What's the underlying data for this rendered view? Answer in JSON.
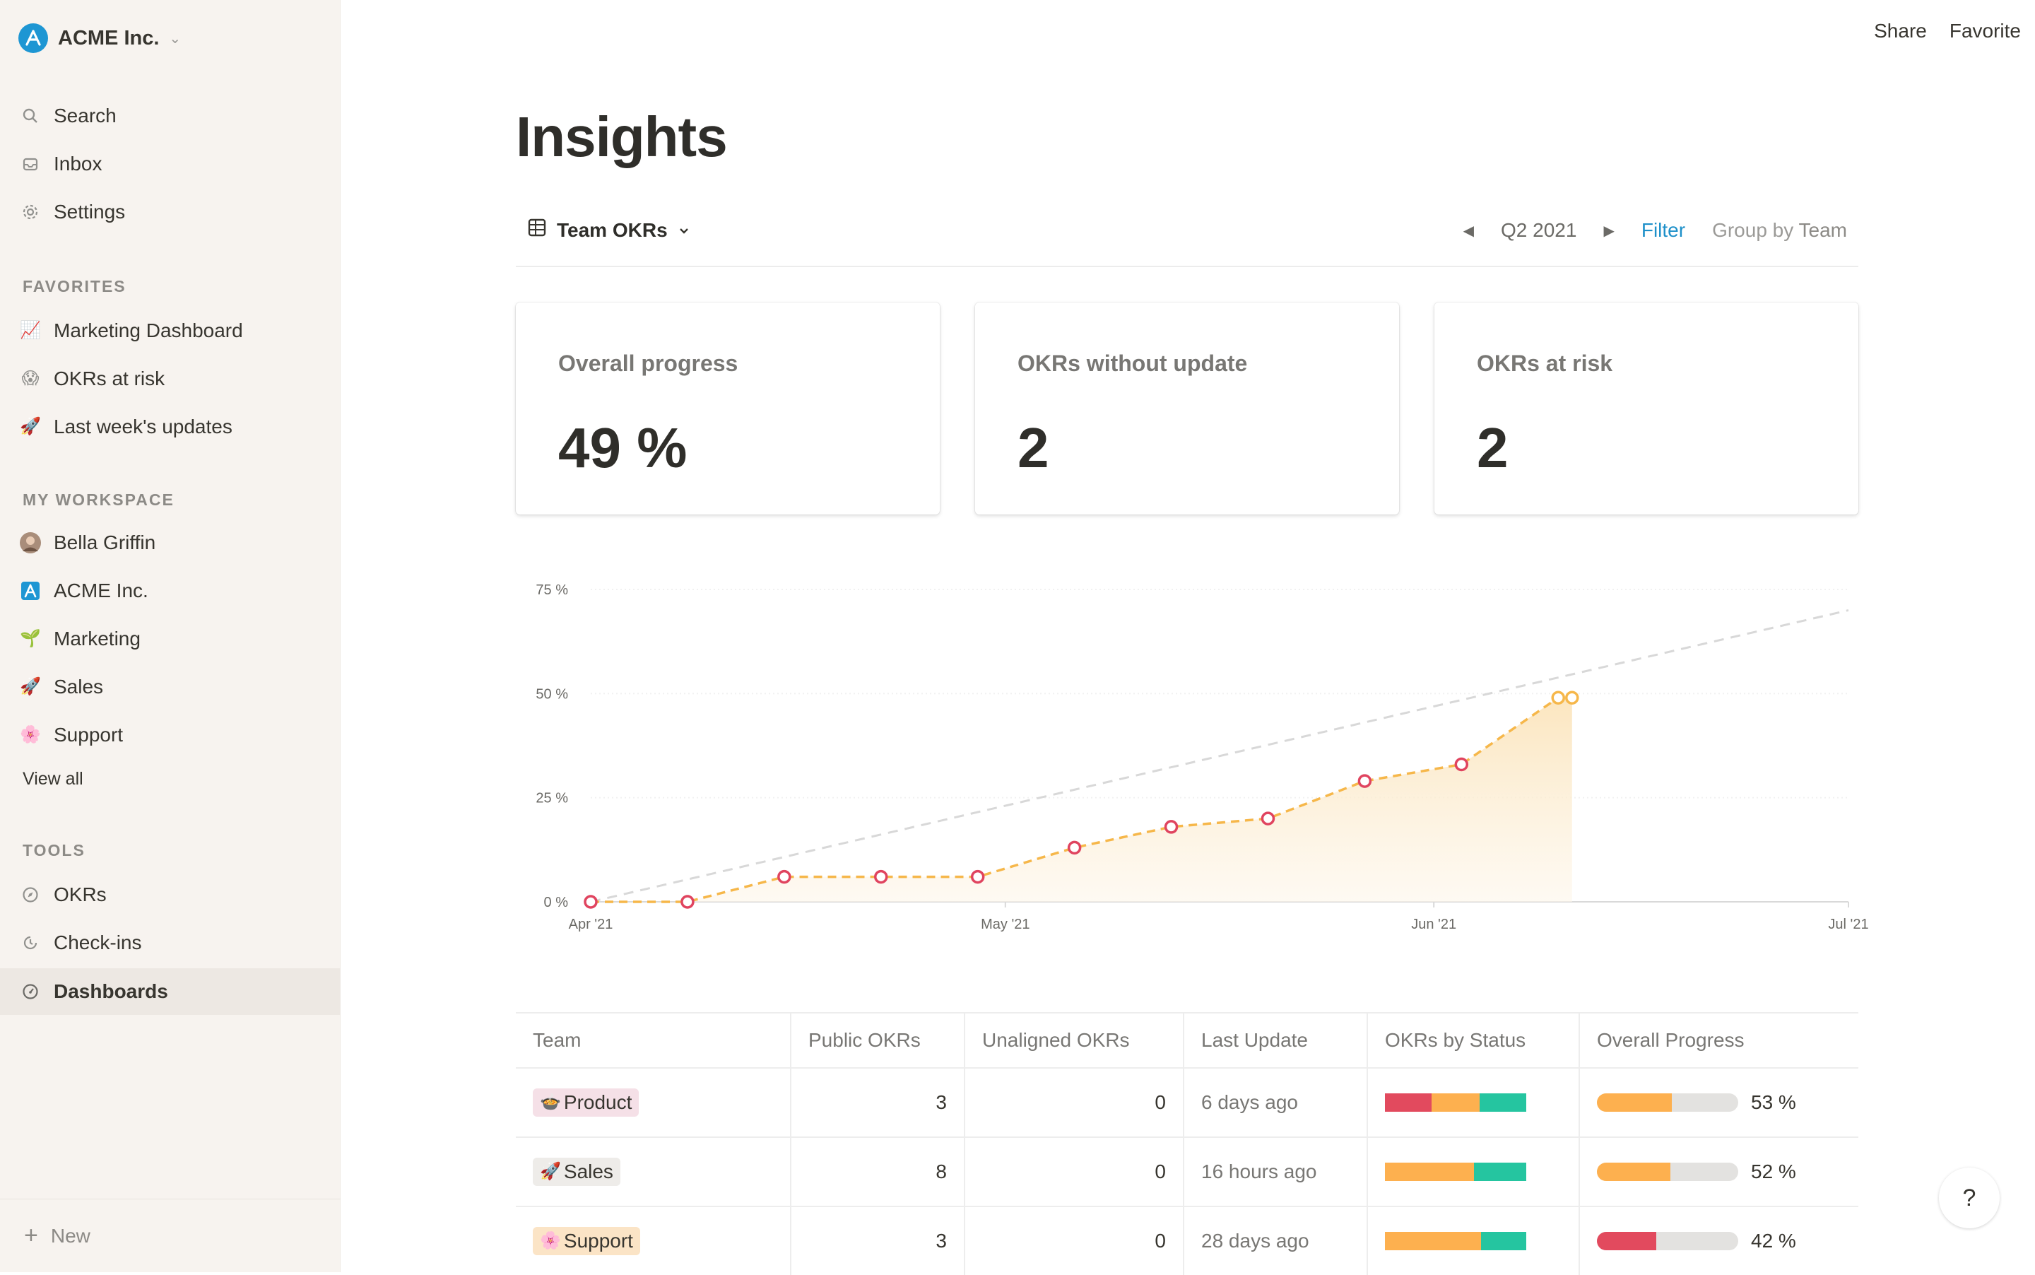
{
  "workspace": {
    "name": "ACME Inc."
  },
  "sidebar": {
    "top_items": [
      {
        "label": "Search",
        "icon": "search-icon"
      },
      {
        "label": "Inbox",
        "icon": "inbox-icon"
      },
      {
        "label": "Settings",
        "icon": "gear-icon"
      }
    ],
    "favorites_label": "FAVORITES",
    "favorites": [
      {
        "label": "Marketing Dashboard",
        "emoji": "📈"
      },
      {
        "label": "OKRs at risk",
        "emoji": "😱"
      },
      {
        "label": "Last week's updates",
        "emoji": "🚀"
      }
    ],
    "workspace_label": "MY WORKSPACE",
    "workspace_items": [
      {
        "label": "Bella Griffin",
        "icon": "avatar"
      },
      {
        "label": "ACME Inc.",
        "icon": "acme-logo-icon"
      },
      {
        "label": "Marketing",
        "emoji": "🌱"
      },
      {
        "label": "Sales",
        "emoji": "🚀"
      },
      {
        "label": "Support",
        "emoji": "🌸"
      }
    ],
    "view_all": "View all",
    "tools_label": "TOOLS",
    "tools": [
      {
        "label": "OKRs",
        "icon": "compass-icon"
      },
      {
        "label": "Check-ins",
        "icon": "clock-icon"
      },
      {
        "label": "Dashboards",
        "icon": "gauge-icon",
        "active": true
      }
    ],
    "new_label": "New"
  },
  "topbar": {
    "share": "Share",
    "favorite": "Favorite"
  },
  "page": {
    "title": "Insights"
  },
  "toolbar": {
    "view": "Team OKRs",
    "period": "Q2 2021",
    "filter": "Filter",
    "group_by_prefix": "Group by",
    "group_by_value": "Team"
  },
  "cards": [
    {
      "title": "Overall progress",
      "value": "49 %"
    },
    {
      "title": "OKRs without update",
      "value": "2"
    },
    {
      "title": "OKRs at risk",
      "value": "2"
    }
  ],
  "chart_data": {
    "type": "line",
    "x_ticks": [
      "Apr '21",
      "May '21",
      "Jun '21",
      "Jul '21"
    ],
    "y_ticks": [
      "0 %",
      "25 %",
      "50 %",
      "75 %"
    ],
    "ylim": [
      0,
      75
    ],
    "xlim": [
      "2021-04-01",
      "2021-07-01"
    ],
    "series": [
      {
        "values": [
          {
            "x": "2021-04-01",
            "y": 0
          },
          {
            "x": "2021-04-08",
            "y": 0
          },
          {
            "x": "2021-04-15",
            "y": 6
          },
          {
            "x": "2021-04-22",
            "y": 6
          },
          {
            "x": "2021-04-29",
            "y": 6
          },
          {
            "x": "2021-05-06",
            "y": 13
          },
          {
            "x": "2021-05-13",
            "y": 18
          },
          {
            "x": "2021-05-20",
            "y": 20
          },
          {
            "x": "2021-05-27",
            "y": 29
          },
          {
            "x": "2021-06-03",
            "y": 33
          },
          {
            "x": "2021-06-10",
            "y": 49
          },
          {
            "x": "2021-06-11",
            "y": 49
          }
        ]
      },
      {
        "style": "dashed-target",
        "values": [
          {
            "x": "2021-04-01",
            "y": 0
          },
          {
            "x": "2021-07-01",
            "y": 70
          }
        ]
      }
    ],
    "colors": {
      "line": "#f6b74a",
      "marker": "#e0445f",
      "fill": "#fdf0d8",
      "target": "#d8d8d8"
    }
  },
  "table": {
    "headers": [
      "Team",
      "Public OKRs",
      "Unaligned OKRs",
      "Last Update",
      "OKRs by Status",
      "Overall Progress"
    ],
    "rows": [
      {
        "team": "Product",
        "emoji": "🍲",
        "tag": "product",
        "public": "3",
        "unaligned": "0",
        "last_update": "6 days ago",
        "status": [
          0.33,
          0.34,
          0.33
        ],
        "progress_label": "53 %",
        "progress": 0.53,
        "progress_color": "#fdb04f"
      },
      {
        "team": "Sales",
        "emoji": "🚀",
        "tag": "sales",
        "public": "8",
        "unaligned": "0",
        "last_update": "16 hours ago",
        "status": [
          0,
          0.63,
          0.37
        ],
        "progress_label": "52 %",
        "progress": 0.52,
        "progress_color": "#fdb04f"
      },
      {
        "team": "Support",
        "emoji": "🌸",
        "tag": "support",
        "public": "3",
        "unaligned": "0",
        "last_update": "28 days ago",
        "status": [
          0,
          0.68,
          0.32
        ],
        "progress_label": "42 %",
        "progress": 0.42,
        "progress_color": "#e24a5e"
      }
    ],
    "status_colors": [
      "#e24a5e",
      "#fdb04f",
      "#25c5a0"
    ]
  },
  "help": "?"
}
